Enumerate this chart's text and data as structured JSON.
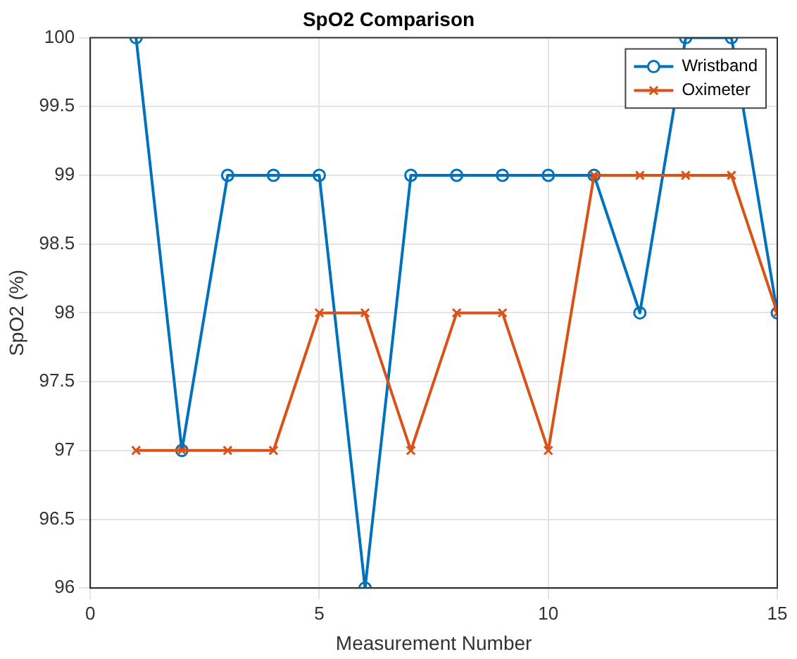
{
  "chart_data": {
    "type": "line",
    "title": "SpO2 Comparison",
    "xlabel": "Measurement Number",
    "ylabel": "SpO2 (%)",
    "x": [
      1,
      2,
      3,
      4,
      5,
      6,
      7,
      8,
      9,
      10,
      11,
      12,
      13,
      14,
      15
    ],
    "series": [
      {
        "name": "Wristband",
        "color": "#0072bd",
        "marker": "circle",
        "values": [
          100,
          97,
          99,
          99,
          99,
          96,
          99,
          99,
          99,
          99,
          99,
          98,
          100,
          100,
          98
        ]
      },
      {
        "name": "Oximeter",
        "color": "#d95319",
        "marker": "cross",
        "values": [
          97,
          97,
          97,
          97,
          98,
          98,
          97,
          98,
          98,
          97,
          99,
          99,
          99,
          99,
          98
        ]
      }
    ],
    "xlim": [
      0,
      15
    ],
    "xticks": [
      0,
      5,
      10,
      15
    ],
    "ylim": [
      96,
      100
    ],
    "yticks": [
      96,
      96.5,
      97,
      97.5,
      98,
      98.5,
      99,
      99.5,
      100
    ],
    "grid": true,
    "legend": "top right",
    "line_style": "solid"
  }
}
